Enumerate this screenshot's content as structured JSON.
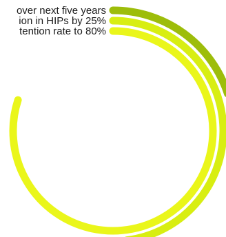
{
  "chart_data": {
    "type": "radial_bar",
    "series": [
      {
        "label": "over next five years",
        "value": 0.2,
        "color": "#9dbd0a"
      },
      {
        "label": "ion in HIPs by 25%",
        "value": 0.48,
        "color": "#d8ee12"
      },
      {
        "label": "tention rate to 80%",
        "value": 0.8,
        "color": "#eaf61a"
      }
    ],
    "max_fraction": 1.0,
    "start_angle": "top",
    "direction": "clockwise",
    "legend": "left-of-track-start"
  }
}
